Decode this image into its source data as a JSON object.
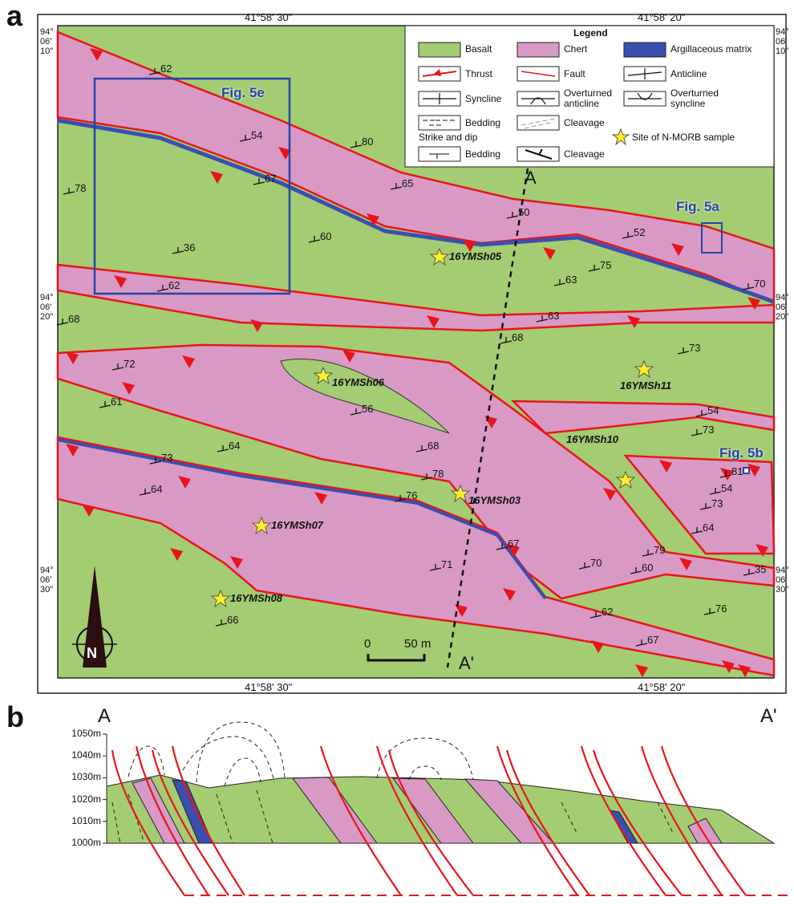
{
  "panel_a": {
    "label": "a",
    "top_coords": [
      "41°58' 30\"",
      "41°58' 20\""
    ],
    "bottom_coords": [
      "41°58' 30\"",
      "41°58' 20\""
    ],
    "left_coords": [
      "94° 06' 10\"",
      "94° 06' 20\"",
      "94° 06' 30\""
    ],
    "right_coords": [
      "94° 06' 10\"",
      "94° 06' 20\"",
      "94° 06' 30\""
    ],
    "legend": {
      "title": "Legend",
      "items": [
        "Basalt",
        "Chert",
        "Argillaceous matrix",
        "Thrust",
        "Fault",
        "Anticline",
        "Syncline",
        "Overturned anticline",
        "Overturned syncline",
        "Bedding",
        "Cleavage",
        "Strike and dip",
        "Bedding",
        "Cleavage",
        "Site of N-MORB sample"
      ]
    },
    "dips": [
      62,
      54,
      80,
      67,
      65,
      78,
      50,
      52,
      36,
      60,
      75,
      63,
      62,
      70,
      68,
      63,
      68,
      73,
      72,
      61,
      56,
      54,
      73,
      68,
      64,
      81,
      78,
      73,
      54,
      76,
      64,
      73,
      64,
      67,
      79,
      70,
      60,
      35,
      71,
      62,
      76,
      67,
      66
    ],
    "samples": [
      "16YMSh05",
      "16YMSh06",
      "16YMSh11",
      "16YMSh03",
      "16YMSh10",
      "16YMSh07",
      "16YMSh08"
    ],
    "figure_boxes": [
      "Fig. 5e",
      "Fig. 5a",
      "Fig. 5b"
    ],
    "section_ends": [
      "A",
      "A'"
    ],
    "scale": {
      "zero": "0",
      "length": "50 m"
    },
    "north": "N"
  },
  "panel_b": {
    "label": "b",
    "section_ends": [
      "A",
      "A'"
    ],
    "elevations": [
      "1050m",
      "1040m",
      "1030m",
      "1020m",
      "1010m",
      "1000m"
    ]
  }
}
